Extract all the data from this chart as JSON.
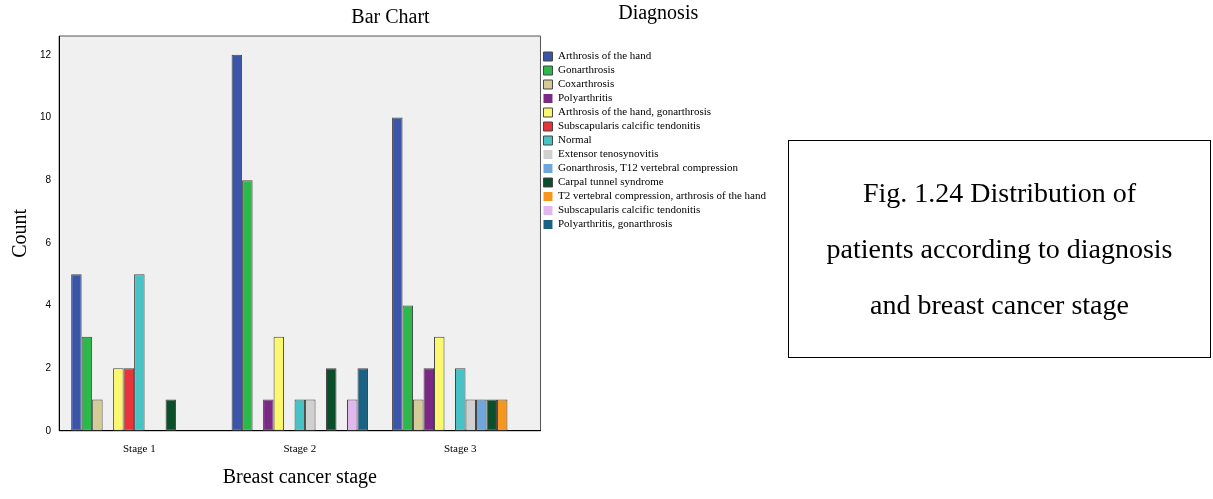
{
  "chart_data": {
    "type": "bar",
    "title": "Bar Chart",
    "xlabel": "Breast cancer stage",
    "ylabel": "Count",
    "legend_title": "Diagnosis",
    "legend": "right",
    "categories": [
      "Stage 1",
      "Stage 2",
      "Stage 3"
    ],
    "series": [
      {
        "name": "Arthrosis of the hand",
        "color": "#3b56a8",
        "values": [
          5,
          12,
          10
        ]
      },
      {
        "name": "Gonarthrosis",
        "color": "#2db84b",
        "values": [
          3,
          8,
          4
        ]
      },
      {
        "name": "Coxarthrosis",
        "color": "#d4cc96",
        "values": [
          1,
          0,
          1
        ]
      },
      {
        "name": "Polyarthritis",
        "color": "#7a2a85",
        "values": [
          0,
          1,
          2
        ]
      },
      {
        "name": "Arthrosis of the hand, gonarthrosis",
        "color": "#fbf870",
        "values": [
          2,
          3,
          3
        ]
      },
      {
        "name": "Subscapularis calcific tendonitis",
        "color": "#e8333a",
        "values": [
          2,
          0,
          0
        ]
      },
      {
        "name": "Normal",
        "color": "#47c3c5",
        "values": [
          5,
          1,
          2
        ]
      },
      {
        "name": "Extensor tenosynovitis",
        "color": "#d0d0d0",
        "values": [
          0,
          1,
          1
        ]
      },
      {
        "name": "Gonarthrosis, T12 vertebral compression",
        "color": "#6fa6dc",
        "values": [
          0,
          0,
          1
        ]
      },
      {
        "name": "Carpal tunnel syndrome",
        "color": "#0b4f2a",
        "values": [
          1,
          2,
          1
        ]
      },
      {
        "name": "T2 vertebral compression, arthrosis of the hand",
        "color": "#f7961d",
        "values": [
          0,
          0,
          1
        ]
      },
      {
        "name": "Subscapularis calcific tendonitis",
        "color": "#e0b8ee",
        "values": [
          0,
          1,
          0
        ]
      },
      {
        "name": "Polyarthritis, gonarthrosis",
        "color": "#1a6283",
        "values": [
          0,
          2,
          0
        ]
      }
    ],
    "ylim": [
      0,
      12.6
    ],
    "yticks": [
      0,
      2,
      4,
      6,
      8,
      10,
      12
    ],
    "grid": false,
    "annotations": [
      "Fig. 1.24 Distribution of patients according to diagnosis and breast cancer stage"
    ]
  }
}
